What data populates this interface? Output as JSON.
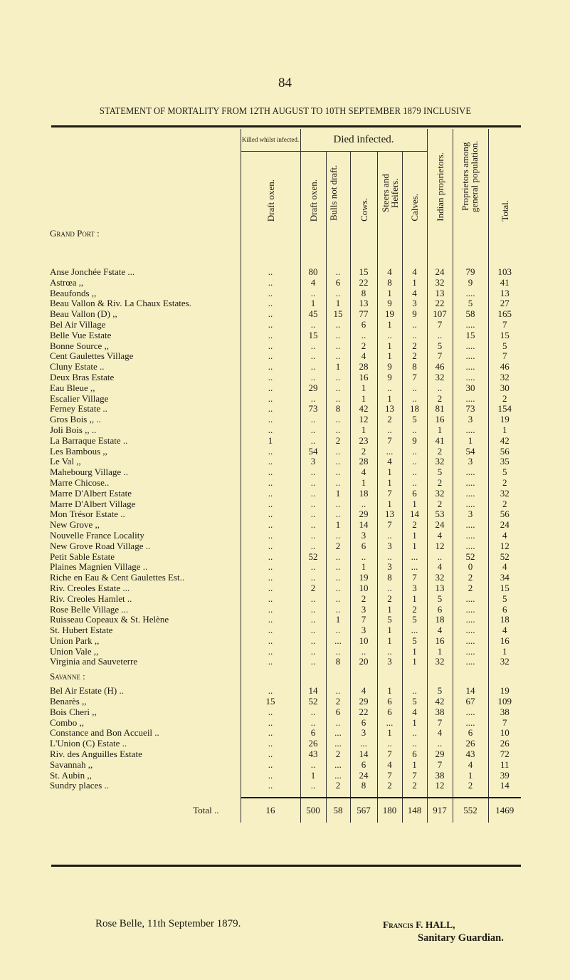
{
  "page_number": "84",
  "title": "STATEMENT OF MORTALITY FROM 12TH AUGUST TO 10TH SEPTEMBER 1879 INCLUSIVE",
  "headers": {
    "killed_group": "Killed whilst infected.",
    "died_group": "Died infected.",
    "columns": [
      "Draft oxen.",
      "Draft oxen.",
      "Bulls not draft.",
      "Cows.",
      "Steers and Heifers.",
      "Calves.",
      "Indian proprietors.",
      "Proprietors among general population.",
      "Total."
    ]
  },
  "sections": [
    {
      "label": "Grand Port :",
      "rows": [
        [
          "Anse Jonchée Fstate ...",
          "..",
          "80",
          "..",
          "15",
          "4",
          "4",
          "24",
          "79",
          "103"
        ],
        [
          "Astrœa ,,",
          "..",
          "4",
          "6",
          "22",
          "8",
          "1",
          "32",
          "9",
          "41"
        ],
        [
          "Beaufonds ,,",
          "..",
          "..",
          "..",
          "8",
          "1",
          "4",
          "13",
          "....",
          "13"
        ],
        [
          "Beau Vallon & Riv. La Chaux Estates.",
          "..",
          "1",
          "1",
          "13",
          "9",
          "3",
          "22",
          "5",
          "27"
        ],
        [
          "Beau Vallon (D) ,,",
          "..",
          "45",
          "15",
          "77",
          "19",
          "9",
          "107",
          "58",
          "165"
        ],
        [
          "Bel Air Village",
          "..",
          "..",
          "..",
          "6",
          "1",
          "..",
          "7",
          "....",
          "7"
        ],
        [
          "Belle Vue Estate",
          "..",
          "15",
          "..",
          "..",
          "..",
          "..",
          "..",
          "15",
          "15"
        ],
        [
          "Bonne Source ,,",
          "..",
          "..",
          "..",
          "2",
          "1",
          "2",
          "5",
          "....",
          "5"
        ],
        [
          "Cent Gaulettes Village",
          "..",
          "..",
          "..",
          "4",
          "1",
          "2",
          "7",
          "....",
          "7"
        ],
        [
          "Cluny Estate ..",
          "..",
          "..",
          "1",
          "28",
          "9",
          "8",
          "46",
          "....",
          "46"
        ],
        [
          "Deux Bras Estate",
          "..",
          "..",
          "..",
          "16",
          "9",
          "7",
          "32",
          "....",
          "32"
        ],
        [
          "Eau Bleue ,,",
          "..",
          "29",
          "..",
          "1",
          "..",
          "..",
          "..",
          "30",
          "30"
        ],
        [
          "Escalier Village",
          "..",
          "..",
          "..",
          "1",
          "1",
          "..",
          "2",
          "....",
          "2"
        ],
        [
          "Ferney Estate ..",
          "..",
          "73",
          "8",
          "42",
          "13",
          "18",
          "81",
          "73",
          "154"
        ],
        [
          "Gros Bois ,, ..",
          "..",
          "..",
          "..",
          "12",
          "2",
          "5",
          "16",
          "3",
          "19"
        ],
        [
          "Joli Bois ,, ..",
          "..",
          "..",
          "..",
          "1",
          "..",
          "..",
          "1",
          "....",
          "1"
        ],
        [
          "La Barraque Estate ..",
          "1",
          "..",
          "2",
          "23",
          "7",
          "9",
          "41",
          "1",
          "42"
        ],
        [
          "Les Bambous ,,",
          "..",
          "54",
          "..",
          "2",
          "...",
          "..",
          "2",
          "54",
          "56"
        ],
        [
          "Le Val ,,",
          "..",
          "3",
          "..",
          "28",
          "4",
          "..",
          "32",
          "3",
          "35"
        ],
        [
          "Mahebourg Village ..",
          "..",
          "..",
          "..",
          "4",
          "1",
          "..",
          "5",
          "....",
          "5"
        ],
        [
          "Marre Chicose..",
          "..",
          "..",
          "..",
          "1",
          "1",
          "..",
          "2",
          "....",
          "2"
        ],
        [
          "Marre D'Albert Estate",
          "..",
          "..",
          "1",
          "18",
          "7",
          "6",
          "32",
          "....",
          "32"
        ],
        [
          "Marre D'Albert Village",
          "..",
          "..",
          "..",
          "..",
          "1",
          "1",
          "2",
          "....",
          "2"
        ],
        [
          "Mon Trésor Estate ..",
          "..",
          "..",
          "..",
          "29",
          "13",
          "14",
          "53",
          "3",
          "56"
        ],
        [
          "New Grove ,,",
          "..",
          "..",
          "1",
          "14",
          "7",
          "2",
          "24",
          "....",
          "24"
        ],
        [
          "Nouvelle France Locality",
          "..",
          "..",
          "..",
          "3",
          "..",
          "1",
          "4",
          "....",
          "4"
        ],
        [
          "New Grove Road Village ..",
          "..",
          "..",
          "2",
          "6",
          "3",
          "1",
          "12",
          "....",
          "12"
        ],
        [
          "Petit Sable Estate",
          "..",
          "52",
          "..",
          "..",
          "..",
          "...",
          "..",
          "52",
          "52"
        ],
        [
          "Plaines Magnien Village ..",
          "..",
          "..",
          "..",
          "1",
          "3",
          "...",
          "4",
          "0",
          "4"
        ],
        [
          "Riche en Eau & Cent Gaulettes Est..",
          "..",
          "..",
          "..",
          "19",
          "8",
          "7",
          "32",
          "2",
          "34"
        ],
        [
          "Riv. Creoles Estate ...",
          "..",
          "2",
          "..",
          "10",
          "..",
          "3",
          "13",
          "2",
          "15"
        ],
        [
          "Riv. Creoles Hamlet ..",
          "..",
          "..",
          "..",
          "2",
          "2",
          "1",
          "5",
          "....",
          "5"
        ],
        [
          "Rose Belle Village ...",
          "..",
          "..",
          "..",
          "3",
          "1",
          "2",
          "6",
          "....",
          "6"
        ],
        [
          "Ruisseau Copeaux & St. Helène",
          "..",
          "..",
          "1",
          "7",
          "5",
          "5",
          "18",
          "....",
          "18"
        ],
        [
          "St. Hubert Estate",
          "..",
          "..",
          "..",
          "3",
          "1",
          "...",
          "4",
          "....",
          "4"
        ],
        [
          "Union Park ,,",
          "..",
          "..",
          "...",
          "10",
          "1",
          "5",
          "16",
          "....",
          "16"
        ],
        [
          "Union Vale ,,",
          "..",
          "..",
          "..",
          "..",
          "..",
          "1",
          "1",
          "....",
          "1"
        ],
        [
          "Virginia and Sauveterre",
          "..",
          "..",
          "8",
          "20",
          "3",
          "1",
          "32",
          "....",
          "32"
        ]
      ]
    },
    {
      "label": "Savanne :",
      "rows": [
        [
          "Bel Air Estate (H) ..",
          "..",
          "14",
          "..",
          "4",
          "1",
          "..",
          "5",
          "14",
          "19"
        ],
        [
          "Benarès ,,",
          "15",
          "52",
          "2",
          "29",
          "6",
          "5",
          "42",
          "67",
          "109"
        ],
        [
          "Bois Cheri ,,",
          "..",
          "..",
          "6",
          "22",
          "6",
          "4",
          "38",
          "....",
          "38"
        ],
        [
          "Combo ,,",
          "..",
          "..",
          "..",
          "6",
          "...",
          "1",
          "7",
          "....",
          "7"
        ],
        [
          "Constance and Bon Accueil ..",
          "..",
          "6",
          "...",
          "3",
          "1",
          "..",
          "4",
          "6",
          "10"
        ],
        [
          "L'Union (C) Estate ..",
          "..",
          "26",
          "...",
          "...",
          "..",
          "..",
          "..",
          "26",
          "26"
        ],
        [
          "Riv. des Anguilles Estate",
          "..",
          "43",
          "2",
          "14",
          "7",
          "6",
          "29",
          "43",
          "72"
        ],
        [
          "Savannah ,,",
          "..",
          "..",
          "...",
          "6",
          "4",
          "1",
          "7",
          "4",
          "11"
        ],
        [
          "St. Aubin ,,",
          "..",
          "1",
          "...",
          "24",
          "7",
          "7",
          "38",
          "1",
          "39"
        ],
        [
          "Sundry places ..",
          "..",
          "..",
          "2",
          "8",
          "2",
          "2",
          "12",
          "2",
          "14"
        ]
      ]
    }
  ],
  "total": [
    "Total ..",
    "16",
    "500",
    "58",
    "567",
    "180",
    "148",
    "917",
    "552",
    "1469"
  ],
  "footer": {
    "place_date": "Rose Belle, 11th September 1879.",
    "signatory": "Francis F. HALL,",
    "signatory_title": "Sanitary Guardian."
  }
}
